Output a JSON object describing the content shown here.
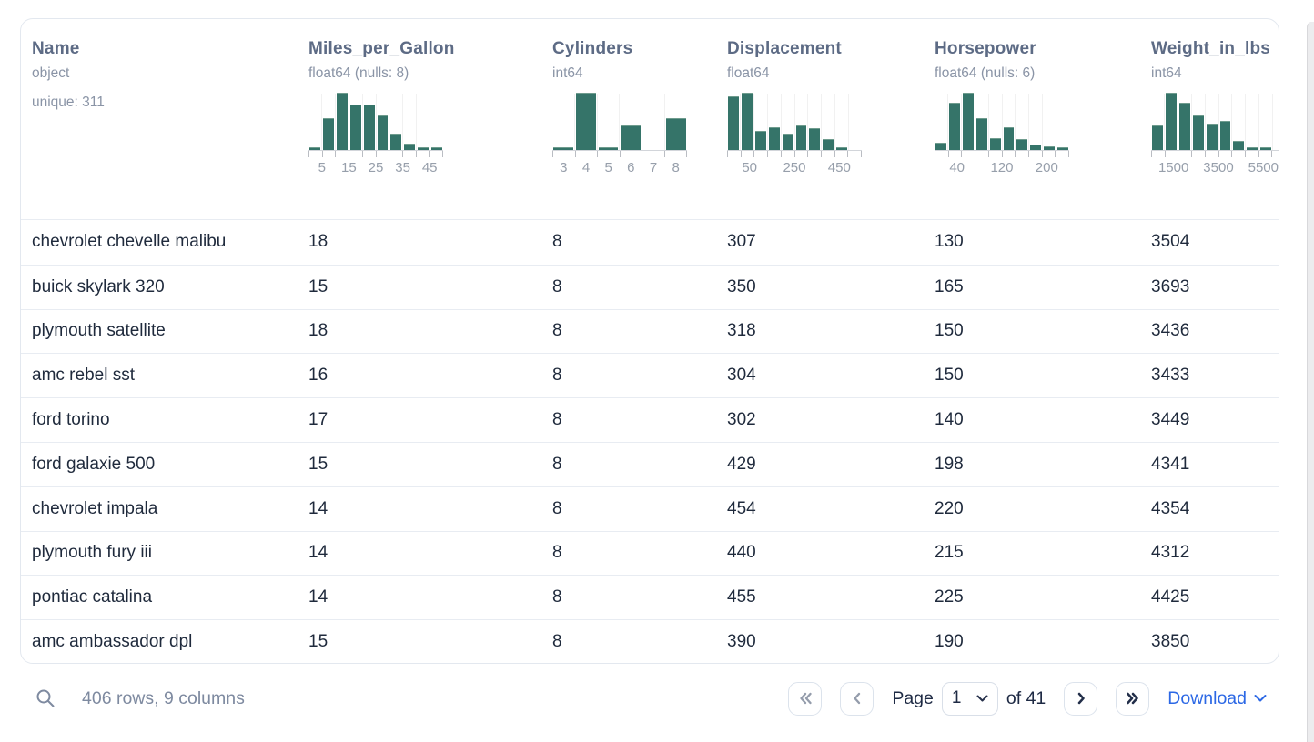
{
  "table": {
    "columns": [
      {
        "name": "Name",
        "dtype": "object",
        "extra": "unique: 311"
      },
      {
        "name": "Miles_per_Gallon",
        "dtype": "float64 (nulls: 8)",
        "histogram": {
          "type": "bar",
          "bins": [
            0.03,
            0.55,
            1.0,
            0.79,
            0.79,
            0.6,
            0.28,
            0.1,
            0.03,
            0.02
          ],
          "tick_labels": [
            "5",
            "15",
            "25",
            "35",
            "45"
          ]
        }
      },
      {
        "name": "Cylinders",
        "dtype": "int64",
        "histogram": {
          "type": "bar",
          "bins": [
            0.04,
            1.0,
            0.03,
            0.42,
            0,
            0.55
          ],
          "tick_labels": [
            "3",
            "4",
            "5",
            "6",
            "7",
            "8"
          ]
        }
      },
      {
        "name": "Displacement",
        "dtype": "float64",
        "histogram": {
          "type": "bar",
          "bins": [
            0.93,
            1.0,
            0.33,
            0.38,
            0.27,
            0.42,
            0.37,
            0.17,
            0.04,
            0
          ],
          "tick_labels": [
            "50",
            "250",
            "450"
          ]
        }
      },
      {
        "name": "Horsepower",
        "dtype": "float64 (nulls: 6)",
        "histogram": {
          "type": "bar",
          "bins": [
            0.12,
            0.82,
            1.0,
            0.55,
            0.2,
            0.38,
            0.18,
            0.08,
            0.05,
            0.04
          ],
          "tick_labels": [
            "40",
            "120",
            "200"
          ]
        }
      },
      {
        "name": "Weight_in_lbs",
        "dtype": "int64",
        "histogram": {
          "type": "bar",
          "bins": [
            0.42,
            1.0,
            0.82,
            0.6,
            0.45,
            0.5,
            0.15,
            0.02,
            0.01,
            0
          ],
          "tick_labels": [
            "1500",
            "3500",
            "5500"
          ]
        }
      }
    ],
    "rows": [
      [
        "chevrolet chevelle malibu",
        "18",
        "8",
        "307",
        "130",
        "3504"
      ],
      [
        "buick skylark 320",
        "15",
        "8",
        "350",
        "165",
        "3693"
      ],
      [
        "plymouth satellite",
        "18",
        "8",
        "318",
        "150",
        "3436"
      ],
      [
        "amc rebel sst",
        "16",
        "8",
        "304",
        "150",
        "3433"
      ],
      [
        "ford torino",
        "17",
        "8",
        "302",
        "140",
        "3449"
      ],
      [
        "ford galaxie 500",
        "15",
        "8",
        "429",
        "198",
        "4341"
      ],
      [
        "chevrolet impala",
        "14",
        "8",
        "454",
        "220",
        "4354"
      ],
      [
        "plymouth fury iii",
        "14",
        "8",
        "440",
        "215",
        "4312"
      ],
      [
        "pontiac catalina",
        "14",
        "8",
        "455",
        "225",
        "4425"
      ],
      [
        "amc ambassador dpl",
        "15",
        "8",
        "390",
        "190",
        "3850"
      ]
    ]
  },
  "footer": {
    "search_icon": "magnifier",
    "summary": "406 rows, 9 columns",
    "pagination": {
      "first_icon": "double-chevron-left",
      "prev_icon": "chevron-left",
      "page_label": "Page",
      "current_page": "1",
      "of_label": "of",
      "total_pages": "41",
      "next_icon": "chevron-right",
      "last_icon": "double-chevron-right"
    },
    "download_label": "Download"
  },
  "colors": {
    "histogram_bar": "#357469",
    "header_text": "#5d6b85",
    "subtext": "#8a94a6",
    "row_text": "#1f2a3c",
    "link_blue": "#2c68e5",
    "border": "#e8ecf2"
  }
}
